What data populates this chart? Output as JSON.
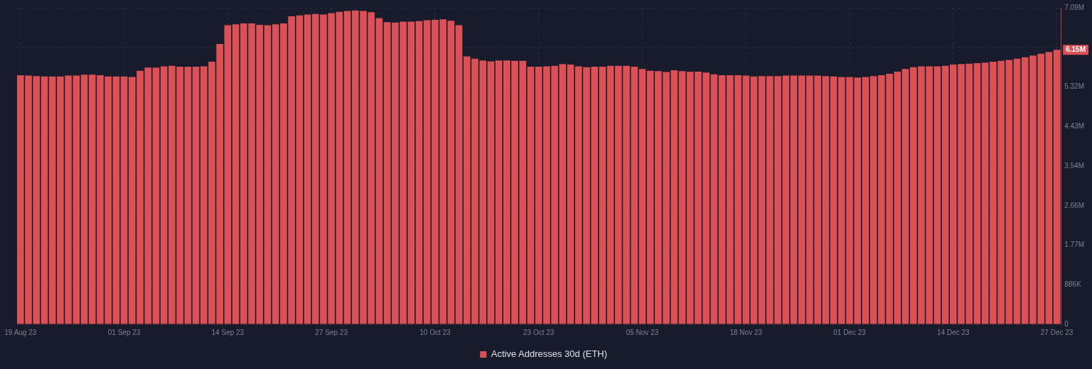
{
  "chart_data": {
    "type": "bar",
    "categories": [
      "19 Aug 23",
      null,
      null,
      null,
      null,
      null,
      null,
      null,
      null,
      null,
      null,
      null,
      null,
      "01 Sep 23",
      null,
      null,
      null,
      null,
      null,
      null,
      null,
      null,
      null,
      null,
      null,
      null,
      "14 Sep 23",
      null,
      null,
      null,
      null,
      null,
      null,
      null,
      null,
      null,
      null,
      null,
      null,
      "27 Sep 23",
      null,
      null,
      null,
      null,
      null,
      null,
      null,
      null,
      null,
      null,
      null,
      null,
      "10 Oct 23",
      null,
      null,
      null,
      null,
      null,
      null,
      null,
      null,
      null,
      null,
      null,
      null,
      "23 Oct 23",
      null,
      null,
      null,
      null,
      null,
      null,
      null,
      null,
      null,
      null,
      null,
      null,
      "05 Nov 23",
      null,
      null,
      null,
      null,
      null,
      null,
      null,
      null,
      null,
      null,
      null,
      null,
      "18 Nov 23",
      null,
      null,
      null,
      null,
      null,
      null,
      null,
      null,
      null,
      null,
      null,
      null,
      "01 Dec 23",
      null,
      null,
      null,
      null,
      null,
      null,
      null,
      null,
      null,
      null,
      null,
      null,
      "14 Dec 23",
      null,
      null,
      null,
      null,
      null,
      null,
      null,
      null,
      null,
      null,
      null,
      null,
      "27 Dec 23"
    ],
    "series": [
      {
        "name": "Active Addresses 30d (ETH)",
        "color": "#dc5156",
        "values": [
          5580000,
          5570000,
          5560000,
          5550000,
          5550000,
          5550000,
          5570000,
          5570000,
          5590000,
          5590000,
          5580000,
          5550000,
          5550000,
          5550000,
          5540000,
          5680000,
          5750000,
          5750000,
          5780000,
          5790000,
          5770000,
          5770000,
          5770000,
          5780000,
          5880000,
          6280000,
          6700000,
          6720000,
          6740000,
          6740000,
          6710000,
          6700000,
          6720000,
          6740000,
          6900000,
          6920000,
          6940000,
          6950000,
          6940000,
          6970000,
          7000000,
          7020000,
          7030000,
          7020000,
          6990000,
          6860000,
          6770000,
          6760000,
          6780000,
          6780000,
          6790000,
          6810000,
          6820000,
          6830000,
          6800000,
          6700000,
          6000000,
          5950000,
          5910000,
          5890000,
          5910000,
          5910000,
          5900000,
          5900000,
          5770000,
          5770000,
          5780000,
          5790000,
          5830000,
          5820000,
          5780000,
          5760000,
          5770000,
          5770000,
          5790000,
          5790000,
          5790000,
          5770000,
          5720000,
          5680000,
          5670000,
          5650000,
          5690000,
          5670000,
          5660000,
          5660000,
          5640000,
          5600000,
          5580000,
          5580000,
          5580000,
          5570000,
          5550000,
          5560000,
          5560000,
          5560000,
          5570000,
          5570000,
          5570000,
          5570000,
          5570000,
          5560000,
          5550000,
          5540000,
          5540000,
          5530000,
          5540000,
          5560000,
          5580000,
          5610000,
          5660000,
          5720000,
          5760000,
          5780000,
          5780000,
          5780000,
          5790000,
          5820000,
          5830000,
          5840000,
          5850000,
          5860000,
          5880000,
          5900000,
          5920000,
          5950000,
          5980000,
          6020000,
          6060000,
          6100000,
          6150000
        ]
      }
    ],
    "ylim": [
      0,
      7090000
    ],
    "yticks": [
      0,
      {
        "value": 886250,
        "label": "886K"
      },
      {
        "value": 1772500,
        "label": "1.77M"
      },
      {
        "value": 2658750,
        "label": "2.66M"
      },
      {
        "value": 3545000,
        "label": "3.54M"
      },
      {
        "value": 4431250,
        "label": "4.43M"
      },
      {
        "value": 5317500,
        "label": "5.32M"
      },
      {
        "value": 6203750,
        "label": null
      },
      {
        "value": 7090000,
        "label": "7.09M"
      }
    ],
    "grid": true,
    "legend": "bottom",
    "annotations": [
      "6.15M"
    ]
  }
}
